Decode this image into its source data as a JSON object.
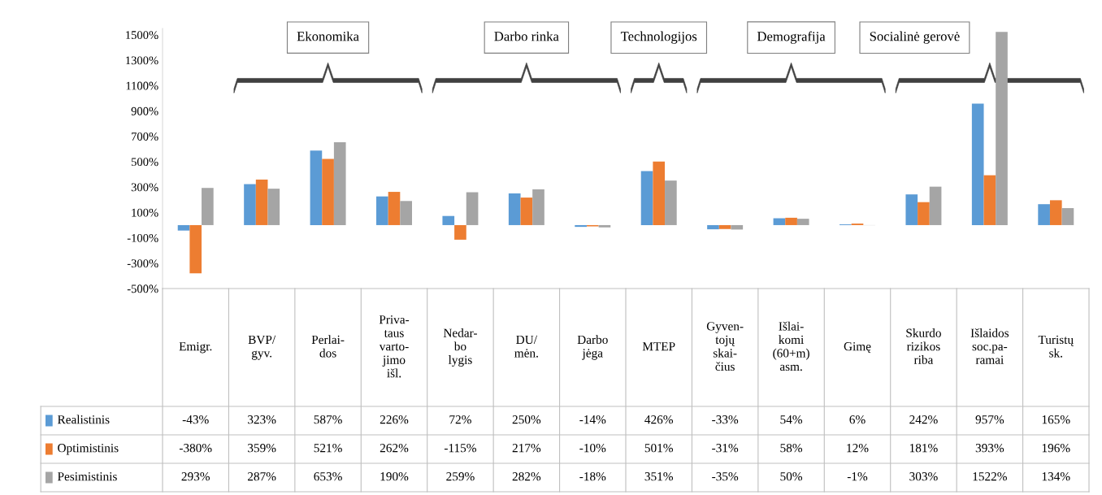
{
  "chart_data": {
    "type": "bar",
    "categories": [
      "Emigr.",
      "BVP/\ngyv.",
      "Perlai-\ndos",
      "Priva-\ntaus\nvarto-\njimo\nišl.",
      "Nedar-\nbo\nlygis",
      "DU/\nmėn.",
      "Darbo\njėga",
      "MTEP",
      "Gyven-\ntojų\nskai-\nčius",
      "Išlai-\nkomi\n(60+m)\nasm.",
      "Gimę",
      "Skurdo\nrizikos\nriba",
      "Išlaidos\nsoc.pa-\nramai",
      "Turistų\nsk."
    ],
    "series": [
      {
        "name": "Realistinis",
        "color": "#5b9bd5",
        "values": [
          -43,
          323,
          587,
          226,
          72,
          250,
          -14,
          426,
          -33,
          54,
          6,
          242,
          957,
          165
        ],
        "value_labels": [
          "-43%",
          "323%",
          "587%",
          "226%",
          "72%",
          "250%",
          "-14%",
          "426%",
          "-33%",
          "54%",
          "6%",
          "242%",
          "957%",
          "165%"
        ]
      },
      {
        "name": "Optimistinis",
        "color": "#ed7d31",
        "values": [
          -380,
          359,
          521,
          262,
          -115,
          217,
          -10,
          501,
          -31,
          58,
          12,
          181,
          393,
          196
        ],
        "value_labels": [
          "-380%",
          "359%",
          "521%",
          "262%",
          "-115%",
          "217%",
          "-10%",
          "501%",
          "-31%",
          "58%",
          "12%",
          "181%",
          "393%",
          "196%"
        ]
      },
      {
        "name": "Pesimistinis",
        "color": "#a5a5a5",
        "values": [
          293,
          287,
          653,
          190,
          259,
          282,
          -18,
          351,
          -35,
          50,
          -1,
          303,
          1522,
          134
        ],
        "value_labels": [
          "293%",
          "287%",
          "653%",
          "190%",
          "259%",
          "282%",
          "-18%",
          "351%",
          "-35%",
          "50%",
          "-1%",
          "303%",
          "1522%",
          "134%"
        ]
      }
    ],
    "ylim": [
      -500,
      1550
    ],
    "yticks": [
      {
        "value": -500,
        "label": "-500%"
      },
      {
        "value": -300,
        "label": "-300%"
      },
      {
        "value": -100,
        "label": "-100%"
      },
      {
        "value": 100,
        "label": "100%"
      },
      {
        "value": 300,
        "label": "300%"
      },
      {
        "value": 500,
        "label": "500%"
      },
      {
        "value": 700,
        "label": "700%"
      },
      {
        "value": 900,
        "label": "900%"
      },
      {
        "value": 1100,
        "label": "1100%"
      },
      {
        "value": 1300,
        "label": "1300%"
      },
      {
        "value": 1500,
        "label": "1500%"
      }
    ],
    "annotations": [
      "Ekonomika",
      "Darbo rinka",
      "Technologijos",
      "Demografija",
      "Socialinė gerovė"
    ],
    "legend": "bottom left"
  }
}
